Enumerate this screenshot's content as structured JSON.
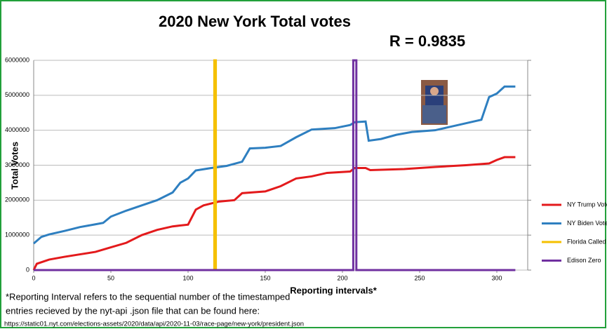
{
  "chart_data": {
    "type": "line",
    "title": "2020 New York Total votes",
    "annotation": "R = 0.9835",
    "y_label": "Total Votes",
    "x_label": "Reporting intervals*",
    "footnote": [
      "*Reporting Interval refers to the sequential number of the timestamped",
      " entries recieved by the nyt-api .json file that can be found here:",
      "https://static01.nyt.com/elections-assets/2020/data/api/2020-11-03/race-page/new-york/president.json"
    ],
    "xlim": [
      0,
      320
    ],
    "xticks": [
      0,
      50,
      100,
      150,
      200,
      250,
      300
    ],
    "ylim": [
      0,
      6000000
    ],
    "yticks": [
      0,
      1000000,
      2000000,
      3000000,
      4000000,
      5000000,
      6000000
    ],
    "grid": true,
    "series": [
      {
        "name": "NY Trump Votes",
        "color": "#e31a1c",
        "x": [
          0,
          2,
          10,
          20,
          30,
          40,
          50,
          60,
          70,
          80,
          90,
          100,
          105,
          110,
          120,
          130,
          135,
          150,
          160,
          170,
          180,
          190,
          205,
          208,
          215,
          218,
          240,
          260,
          280,
          295,
          300,
          305,
          312
        ],
        "values": [
          0,
          180000,
          300000,
          380000,
          450000,
          520000,
          650000,
          780000,
          1000000,
          1150000,
          1250000,
          1300000,
          1730000,
          1850000,
          1960000,
          2000000,
          2200000,
          2250000,
          2400000,
          2620000,
          2680000,
          2780000,
          2820000,
          2920000,
          2920000,
          2860000,
          2890000,
          2950000,
          3000000,
          3050000,
          3150000,
          3230000,
          3230000
        ]
      },
      {
        "name": "NY Biden Votes",
        "color": "#2e7fc0",
        "x": [
          0,
          5,
          10,
          20,
          30,
          40,
          45,
          50,
          60,
          70,
          80,
          90,
          95,
          100,
          105,
          115,
          125,
          135,
          140,
          150,
          160,
          170,
          180,
          195,
          205,
          208,
          215,
          217,
          225,
          235,
          245,
          260,
          275,
          285,
          290,
          295,
          300,
          305,
          312
        ],
        "values": [
          760000,
          950000,
          1020000,
          1120000,
          1230000,
          1310000,
          1350000,
          1530000,
          1700000,
          1850000,
          2000000,
          2220000,
          2500000,
          2620000,
          2850000,
          2920000,
          2980000,
          3100000,
          3480000,
          3500000,
          3550000,
          3800000,
          4020000,
          4060000,
          4150000,
          4230000,
          4250000,
          3700000,
          3750000,
          3870000,
          3950000,
          4000000,
          4150000,
          4250000,
          4300000,
          4950000,
          5050000,
          5250000,
          5250000
        ]
      },
      {
        "name": "Florida Called",
        "color": "#f5c000",
        "x": [
          117,
          117,
          118,
          118
        ],
        "values": [
          0,
          6000000,
          6000000,
          0
        ]
      },
      {
        "name": "Edison Zero",
        "color": "#7030a0",
        "x": [
          0,
          207,
          207,
          209,
          209,
          312
        ],
        "values": [
          0,
          0,
          6000000,
          6000000,
          0,
          0
        ]
      }
    ]
  }
}
